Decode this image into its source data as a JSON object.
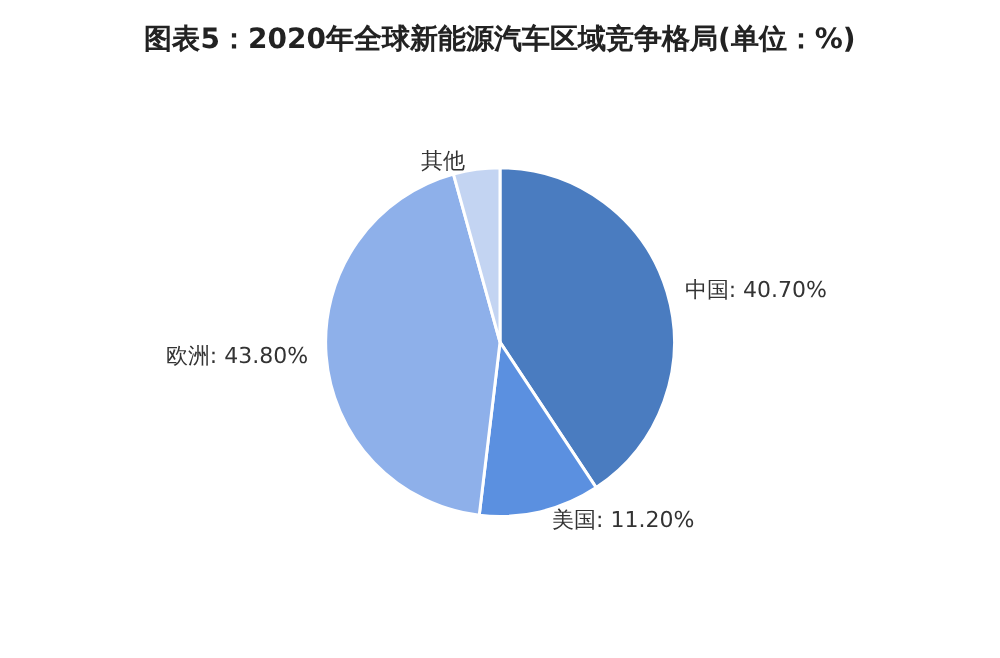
{
  "chart_data": {
    "type": "pie",
    "title": "图表5：2020年全球新能源汽车区域竞争格局(单位：%)",
    "categories": [
      "中国",
      "美国",
      "欧洲",
      "其他"
    ],
    "values": [
      40.7,
      11.2,
      43.8,
      4.3
    ],
    "value_labels": [
      "40.70%",
      "11.20%",
      "43.80%",
      null
    ],
    "colors": [
      "#4a7cc0",
      "#5b90e0",
      "#8eb0ea",
      "#c3d4f2"
    ],
    "legend": false
  }
}
